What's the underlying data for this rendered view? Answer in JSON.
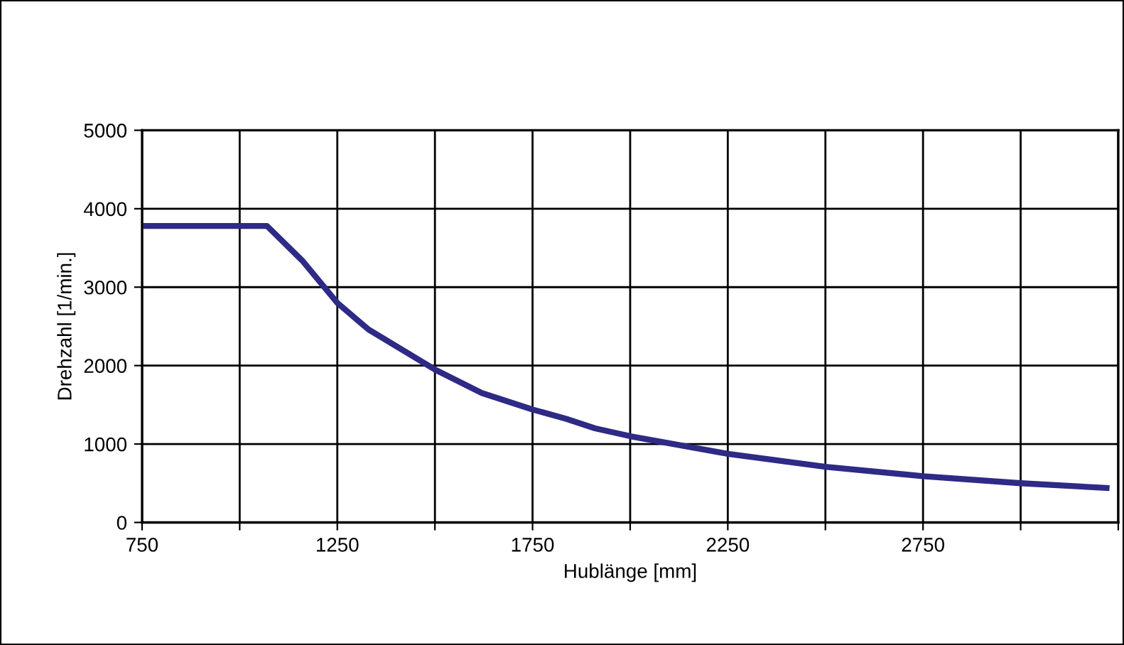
{
  "chart_data": {
    "type": "line",
    "xlabel": "Hublänge [mm]",
    "ylabel": "Drehzahl [1/min.]",
    "x": [
      760,
      1070,
      1160,
      1250,
      1330,
      1500,
      1620,
      1750,
      1837,
      1910,
      2000,
      2250,
      2500,
      2750,
      3000,
      3220
    ],
    "series": [
      {
        "color": "#2e2a85",
        "values": [
          3780,
          3780,
          3340,
          2800,
          2460,
          1950,
          1650,
          1440,
          1320,
          1200,
          1100,
          875,
          710,
          590,
          500,
          440
        ]
      }
    ],
    "xlim": [
      750,
      3250
    ],
    "xticks": [
      750,
      {
        "value": 1000,
        "label": null
      },
      1250,
      {
        "value": 1500,
        "label": null
      },
      1750,
      {
        "value": 2000,
        "label": null
      },
      2250,
      {
        "value": 2500,
        "label": null
      },
      2750,
      {
        "value": 3000,
        "label": null
      },
      {
        "value": 3250,
        "label": null
      }
    ],
    "ylim": [
      0,
      5000
    ],
    "yticks": [
      0,
      1000,
      2000,
      3000,
      4000,
      5000
    ],
    "grid": true,
    "marker": "none",
    "line_style": "solid",
    "legend": false
  }
}
